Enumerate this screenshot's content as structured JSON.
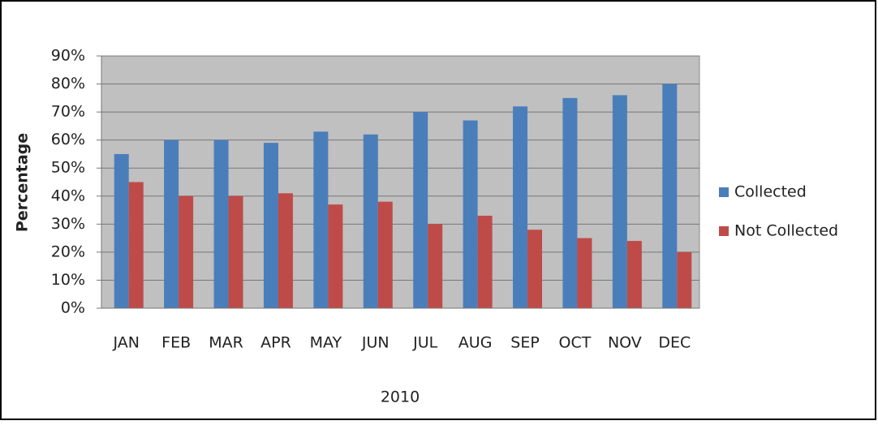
{
  "chart_data": {
    "type": "bar",
    "y_label": "Percentage",
    "x_label": "2010",
    "categories": [
      "JAN",
      "FEB",
      "MAR",
      "APR",
      "MAY",
      "JUN",
      "JUL",
      "AUG",
      "SEP",
      "OCT",
      "NOV",
      "DEC"
    ],
    "series": [
      {
        "name": "Collected",
        "color": "#4a7ebb",
        "values": [
          55,
          60,
          60,
          59,
          63,
          62,
          70,
          67,
          72,
          75,
          76,
          80
        ]
      },
      {
        "name": "Not Collected",
        "color": "#be4b48",
        "values": [
          45,
          40,
          40,
          41,
          37,
          38,
          30,
          33,
          28,
          25,
          24,
          20
        ]
      }
    ],
    "ylim": [
      0,
      90
    ],
    "yticks": [
      {
        "value": 0,
        "label": "0%"
      },
      {
        "value": 10,
        "label": "10%"
      },
      {
        "value": 20,
        "label": "20%"
      },
      {
        "value": 30,
        "label": "30%"
      },
      {
        "value": 40,
        "label": "40%"
      },
      {
        "value": 50,
        "label": "50%"
      },
      {
        "value": 60,
        "label": "60%"
      },
      {
        "value": 70,
        "label": "70%"
      },
      {
        "value": 80,
        "label": "80%"
      },
      {
        "value": 90,
        "label": "90%"
      }
    ],
    "grid": true,
    "legend": "right",
    "plot_background": "#c0c0c0"
  }
}
